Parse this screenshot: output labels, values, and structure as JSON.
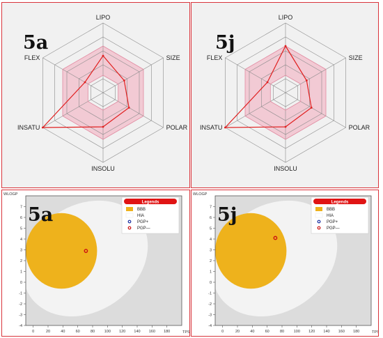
{
  "colors": {
    "border": "#d9333a",
    "radar_fill": "#f2c3cf",
    "radar_line": "#e02020",
    "grid": "#8a8a8a",
    "bbb": "#eeb21c",
    "hia": "#f3f3f3",
    "plot_bg": "#dcdcdc",
    "pgp_plus": "#1a2fa0",
    "pgp_minus": "#cc1111",
    "legend_header": "#e01414"
  },
  "panels": [
    {
      "compound": "5a"
    },
    {
      "compound": "5j"
    },
    {
      "compound": "5a"
    },
    {
      "compound": "5j"
    }
  ],
  "chart_data": [
    {
      "type": "radar",
      "compound": "5a",
      "axes": [
        "LIPO",
        "SIZE",
        "POLAR",
        "INSOLU",
        "INSATU",
        "FLEX"
      ],
      "values": [
        0.53,
        0.35,
        0.43,
        0.49,
        1.0,
        0.3
      ],
      "optimal_range": {
        "min": 0.25,
        "max": 0.67
      },
      "rmax": 1
    },
    {
      "type": "radar",
      "compound": "5j",
      "axes": [
        "LIPO",
        "SIZE",
        "POLAR",
        "INSOLU",
        "INSATU",
        "FLEX"
      ],
      "values": [
        0.67,
        0.35,
        0.43,
        0.49,
        1.0,
        0.3
      ],
      "optimal_range": {
        "min": 0.25,
        "max": 0.67
      },
      "rmax": 1
    },
    {
      "type": "scatter",
      "compound": "5a",
      "xlabel": "TPSA",
      "ylabel": "WLOGP",
      "xlim": [
        -10,
        200
      ],
      "ylim": [
        -4,
        8
      ],
      "xticks": [
        0,
        20,
        40,
        60,
        80,
        100,
        120,
        140,
        160,
        180
      ],
      "yticks": [
        -4,
        -3,
        -2,
        -1,
        0,
        1,
        2,
        3,
        4,
        5,
        6,
        7
      ],
      "hia_ellipse": {
        "cx": 70,
        "cy": 2.2,
        "rx": 90,
        "ry": 4.9,
        "angle": -35
      },
      "bbb_ellipse": {
        "cx": 38,
        "cy": 2.9,
        "rx": 48,
        "ry": 3.5,
        "angle": 0
      },
      "legend": {
        "title": "Legends",
        "items": [
          "BBB",
          "HIA",
          "PGP+",
          "PGP—"
        ]
      },
      "points": [
        {
          "x": 71,
          "y": 2.9,
          "class": "PGP—"
        }
      ]
    },
    {
      "type": "scatter",
      "compound": "5j",
      "xlabel": "TPSA",
      "ylabel": "WLOGP",
      "xlim": [
        -10,
        200
      ],
      "ylim": [
        -4,
        8
      ],
      "xticks": [
        0,
        20,
        40,
        60,
        80,
        100,
        120,
        140,
        160,
        180
      ],
      "yticks": [
        -4,
        -3,
        -2,
        -1,
        0,
        1,
        2,
        3,
        4,
        5,
        6,
        7
      ],
      "hia_ellipse": {
        "cx": 70,
        "cy": 2.2,
        "rx": 90,
        "ry": 4.9,
        "angle": -35
      },
      "bbb_ellipse": {
        "cx": 38,
        "cy": 2.9,
        "rx": 48,
        "ry": 3.5,
        "angle": 0
      },
      "legend": {
        "title": "Legends",
        "items": [
          "BBB",
          "HIA",
          "PGP+",
          "PGP—"
        ]
      },
      "points": [
        {
          "x": 71,
          "y": 4.1,
          "class": "PGP—"
        }
      ]
    }
  ]
}
